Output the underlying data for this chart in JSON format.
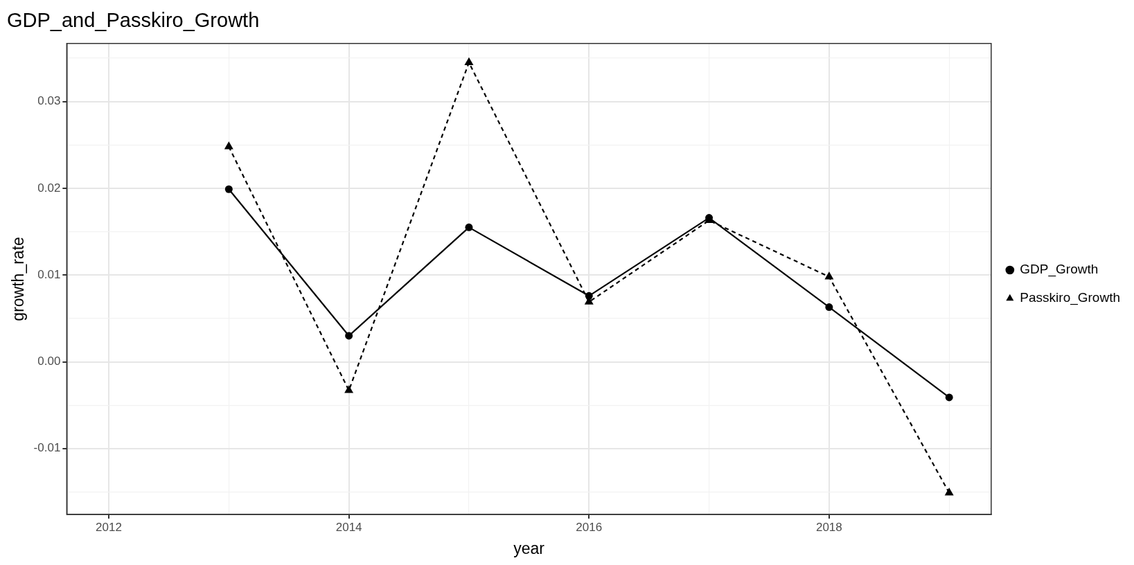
{
  "chart_data": {
    "type": "line",
    "title": "GDP_and_Passkiro_Growth",
    "xlabel": "year",
    "ylabel": "growth_rate",
    "x": [
      2013,
      2014,
      2015,
      2016,
      2017,
      2018,
      2019
    ],
    "series": [
      {
        "name": "GDP_Growth",
        "color": "#000000",
        "marker": "circle",
        "line_style": "solid",
        "values": [
          0.0199,
          0.003,
          0.0155,
          0.0076,
          0.0166,
          0.0063,
          -0.0041
        ]
      },
      {
        "name": "Passkiro_Growth",
        "color": "#000000",
        "marker": "triangle",
        "line_style": "dashed",
        "values": [
          0.0248,
          -0.0033,
          0.0345,
          0.0069,
          0.0163,
          0.0098,
          -0.0151
        ]
      }
    ],
    "xlim": [
      2011.65,
      2019.35
    ],
    "xticks": [
      2012,
      {
        "value": 2013,
        "label": null
      },
      2014,
      {
        "value": 2015,
        "label": null
      },
      2016,
      {
        "value": 2017,
        "label": null
      },
      2018,
      {
        "value": 2019,
        "label": null
      }
    ],
    "ylim": [
      -0.0176,
      0.0367
    ],
    "yticks": [
      {
        "value": -0.015,
        "label": null
      },
      -0.01,
      {
        "value": -0.005,
        "label": null
      },
      {
        "value": 0,
        "label": "0.00"
      },
      {
        "value": 0.005,
        "label": null
      },
      0.01,
      {
        "value": 0.015,
        "label": null
      },
      0.02,
      {
        "value": 0.025,
        "label": null
      },
      0.03,
      {
        "value": 0.035,
        "label": null
      }
    ],
    "grid": true,
    "legend": "right"
  }
}
